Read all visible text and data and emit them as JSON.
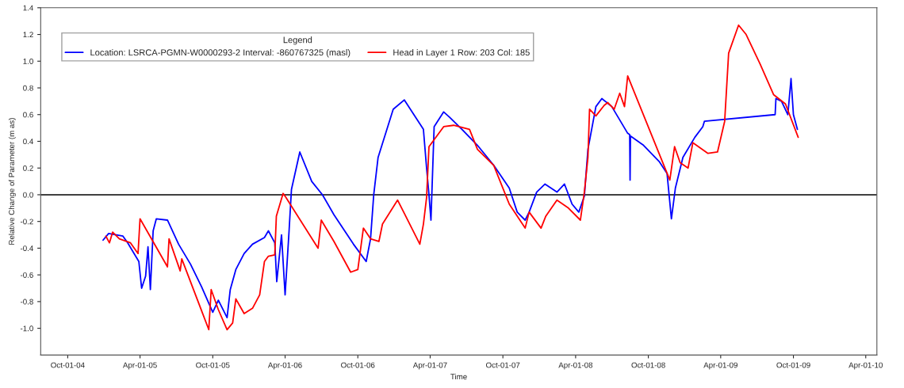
{
  "chart_data": {
    "type": "line",
    "xlabel": "Time",
    "ylabel": "Relative Change of Parameter (m as)",
    "legend_title": "Legend",
    "legend": "top left",
    "grid": false,
    "marker": "none",
    "line_style": "solid",
    "xlim": [
      "2004-07-25",
      "2010-04-29"
    ],
    "ylim": [
      -1.2,
      1.4
    ],
    "xticks": [
      {
        "value": "2004-10-01",
        "label": "Oct-01-04"
      },
      {
        "value": "2005-04-01",
        "label": "Apr-01-05"
      },
      {
        "value": "2005-10-01",
        "label": "Oct-01-05"
      },
      {
        "value": "2006-04-01",
        "label": "Apr-01-06"
      },
      {
        "value": "2006-10-01",
        "label": "Oct-01-06"
      },
      {
        "value": "2007-04-01",
        "label": "Apr-01-07"
      },
      {
        "value": "2007-10-01",
        "label": "Oct-01-07"
      },
      {
        "value": "2008-04-01",
        "label": "Apr-01-08"
      },
      {
        "value": "2008-10-01",
        "label": "Oct-01-08"
      },
      {
        "value": "2009-04-01",
        "label": "Apr-01-09"
      },
      {
        "value": "2009-10-01",
        "label": "Oct-01-09"
      },
      {
        "value": "2010-04-01",
        "label": "Apr-01-10"
      }
    ],
    "yticks": [
      {
        "value": -1.0,
        "label": "-1.0"
      },
      {
        "value": -0.8,
        "label": "-0.8"
      },
      {
        "value": -0.6,
        "label": "-0.6"
      },
      {
        "value": -0.4,
        "label": "-0.4"
      },
      {
        "value": -0.2,
        "label": "-0.2"
      },
      {
        "value": 0.0,
        "label": "0.0"
      },
      {
        "value": 0.2,
        "label": "0.2"
      },
      {
        "value": 0.4,
        "label": "0.4"
      },
      {
        "value": 0.6,
        "label": "0.6"
      },
      {
        "value": 0.8,
        "label": "0.8"
      },
      {
        "value": 1.0,
        "label": "1.0"
      },
      {
        "value": 1.2,
        "label": "1.2"
      },
      {
        "value": 1.4,
        "label": "1.4"
      }
    ],
    "ref_lines": [
      {
        "axis": "y",
        "value": 0,
        "color": "#000000"
      }
    ],
    "series": [
      {
        "name": "Location: LSRCA-PGMN-W0000293-2 Interval: -860767325 (masl)",
        "color": "#0000ff",
        "x": [
          "2004-12-29",
          "2005-01-12",
          "2005-02-17",
          "2005-03-01",
          "2005-03-29",
          "2005-04-05",
          "2005-04-15",
          "2005-04-21",
          "2005-04-27",
          "2005-05-04",
          "2005-05-12",
          "2005-06-09",
          "2005-07-07",
          "2005-08-06",
          "2005-09-03",
          "2005-10-01",
          "2005-10-15",
          "2005-11-06",
          "2005-11-14",
          "2005-11-28",
          "2005-12-19",
          "2006-01-09",
          "2006-02-08",
          "2006-02-18",
          "2006-03-06",
          "2006-03-11",
          "2006-03-23",
          "2006-04-01",
          "2006-04-11",
          "2006-04-17",
          "2006-05-08",
          "2006-06-07",
          "2006-07-04",
          "2006-08-02",
          "2006-09-20",
          "2006-10-22",
          "2006-11-02",
          "2006-11-10",
          "2006-11-21",
          "2006-12-29",
          "2007-01-26",
          "2007-03-15",
          "2007-03-23",
          "2007-03-29",
          "2007-04-03",
          "2007-04-11",
          "2007-05-05",
          "2007-05-20",
          "2007-06-20",
          "2007-07-29",
          "2007-09-08",
          "2007-10-17",
          "2007-11-06",
          "2007-11-26",
          "2007-12-06",
          "2007-12-25",
          "2008-01-15",
          "2008-02-14",
          "2008-03-04",
          "2008-03-23",
          "2008-04-09",
          "2008-04-23",
          "2008-05-02",
          "2008-05-22",
          "2008-06-06",
          "2008-07-01",
          "2008-08-10",
          "2008-08-15",
          "2008-08-16",
          "2008-08-17",
          "2008-09-19",
          "2008-10-28",
          "2008-11-17",
          "2008-11-28",
          "2008-12-08",
          "2008-12-27",
          "2009-01-26",
          "2009-02-15",
          "2009-02-19",
          "2009-08-16",
          "2009-08-18",
          "2009-09-01",
          "2009-09-17",
          "2009-09-25",
          "2009-10-01",
          "2009-10-11"
        ],
        "values": [
          -0.34,
          -0.29,
          -0.31,
          -0.36,
          -0.5,
          -0.7,
          -0.61,
          -0.39,
          -0.71,
          -0.27,
          -0.18,
          -0.19,
          -0.37,
          -0.52,
          -0.69,
          -0.88,
          -0.79,
          -0.92,
          -0.71,
          -0.56,
          -0.44,
          -0.37,
          -0.32,
          -0.27,
          -0.36,
          -0.65,
          -0.3,
          -0.75,
          -0.27,
          0.04,
          0.32,
          0.1,
          0.0,
          -0.15,
          -0.37,
          -0.5,
          -0.33,
          0.0,
          0.28,
          0.64,
          0.71,
          0.49,
          0.2,
          0.0,
          -0.19,
          0.51,
          0.62,
          0.58,
          0.49,
          0.37,
          0.22,
          0.05,
          -0.13,
          -0.19,
          -0.13,
          0.02,
          0.08,
          0.02,
          0.08,
          -0.07,
          -0.13,
          -0.01,
          0.34,
          0.66,
          0.72,
          0.66,
          0.46,
          0.45,
          0.11,
          0.44,
          0.37,
          0.25,
          0.16,
          -0.18,
          0.05,
          0.28,
          0.43,
          0.51,
          0.55,
          0.6,
          0.72,
          0.7,
          0.6,
          0.87,
          0.6,
          0.49
        ]
      },
      {
        "name": "Head in Layer 1 Row: 203 Col: 185",
        "color": "#ff0000",
        "x": [
          "2005-01-05",
          "2005-01-14",
          "2005-01-22",
          "2005-02-08",
          "2005-03-08",
          "2005-03-27",
          "2005-04-01",
          "2005-06-09",
          "2005-06-13",
          "2005-07-11",
          "2005-07-15",
          "2005-09-21",
          "2005-09-27",
          "2005-10-15",
          "2005-11-06",
          "2005-11-20",
          "2005-11-28",
          "2005-12-19",
          "2006-01-09",
          "2006-01-27",
          "2006-02-08",
          "2006-02-18",
          "2006-03-06",
          "2006-03-10",
          "2006-03-27",
          "2006-04-03",
          "2006-06-23",
          "2006-07-01",
          "2006-08-02",
          "2006-09-13",
          "2006-10-01",
          "2006-10-15",
          "2006-11-02",
          "2006-11-23",
          "2006-12-02",
          "2007-01-09",
          "2007-03-06",
          "2007-03-15",
          "2007-03-23",
          "2007-03-29",
          "2007-05-05",
          "2007-05-30",
          "2007-07-09",
          "2007-07-29",
          "2007-09-08",
          "2007-10-17",
          "2007-11-26",
          "2007-12-06",
          "2008-01-05",
          "2008-01-17",
          "2008-02-14",
          "2008-03-14",
          "2008-04-13",
          "2008-04-23",
          "2008-05-02",
          "2008-05-06",
          "2008-05-22",
          "2008-06-12",
          "2008-06-21",
          "2008-07-07",
          "2008-07-21",
          "2008-08-02",
          "2008-08-10",
          "2008-11-24",
          "2008-12-06",
          "2008-12-20",
          "2009-01-09",
          "2009-01-21",
          "2009-02-28",
          "2009-03-24",
          "2009-04-11",
          "2009-04-21",
          "2009-05-16",
          "2009-06-04",
          "2009-07-09",
          "2009-08-12",
          "2009-09-11",
          "2009-10-13"
        ],
        "values": [
          -0.31,
          -0.36,
          -0.28,
          -0.33,
          -0.36,
          -0.44,
          -0.18,
          -0.54,
          -0.33,
          -0.57,
          -0.48,
          -1.01,
          -0.71,
          -0.86,
          -1.01,
          -0.96,
          -0.78,
          -0.89,
          -0.85,
          -0.75,
          -0.5,
          -0.46,
          -0.45,
          -0.16,
          0.01,
          -0.02,
          -0.4,
          -0.19,
          -0.35,
          -0.58,
          -0.56,
          -0.25,
          -0.33,
          -0.35,
          -0.22,
          -0.04,
          -0.37,
          -0.22,
          -0.02,
          0.36,
          0.51,
          0.52,
          0.49,
          0.34,
          0.22,
          -0.07,
          -0.25,
          -0.13,
          -0.25,
          -0.16,
          -0.04,
          -0.1,
          -0.19,
          0.02,
          0.28,
          0.64,
          0.59,
          0.67,
          0.69,
          0.64,
          0.76,
          0.66,
          0.89,
          0.11,
          0.36,
          0.24,
          0.2,
          0.39,
          0.31,
          0.32,
          0.55,
          1.06,
          1.27,
          1.2,
          0.98,
          0.75,
          0.68,
          0.43
        ]
      }
    ]
  }
}
